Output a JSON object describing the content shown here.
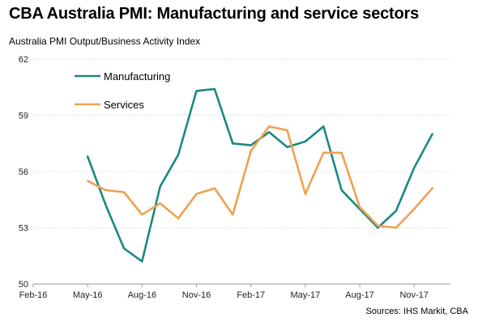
{
  "title": "CBA Australia PMI: Manufacturing and service sectors",
  "subtitle": "Australia PMI Output/Business Activity Index",
  "source": "Sources: IHS Markit, CBA",
  "colors": {
    "manufacturing": "#1a8a80",
    "services": "#f0a050",
    "grid": "#d0d0d0",
    "axis": "#999999"
  },
  "chart_data": {
    "type": "line",
    "title": "CBA Australia PMI: Manufacturing and service sectors",
    "ylabel": "Australia PMI Output/Business Activity Index",
    "xlabel": "",
    "ylim": [
      50,
      62
    ],
    "yticks": [
      50,
      53,
      56,
      59,
      62
    ],
    "ytick_labels": [
      "50",
      "53",
      "56",
      "59",
      "62"
    ],
    "xlim": [
      "2016-02",
      "2018-01"
    ],
    "xticks": [
      "2016-02",
      "2016-05",
      "2016-08",
      "2016-11",
      "2017-02",
      "2017-05",
      "2017-08",
      "2017-11"
    ],
    "xtick_labels": [
      "Feb-16",
      "May-16",
      "Aug-16",
      "Nov-16",
      "Feb-17",
      "May-17",
      "Aug-17",
      "Nov-17"
    ],
    "grid": "horizontal",
    "legend": "top-left",
    "x": [
      "2016-05",
      "2016-06",
      "2016-07",
      "2016-08",
      "2016-09",
      "2016-10",
      "2016-11",
      "2016-12",
      "2017-01",
      "2017-02",
      "2017-03",
      "2017-04",
      "2017-05",
      "2017-06",
      "2017-07",
      "2017-08",
      "2017-09",
      "2017-10",
      "2017-11",
      "2017-12"
    ],
    "series": [
      {
        "name": "Manufacturing",
        "values": [
          56.8,
          54.2,
          51.9,
          51.2,
          55.2,
          56.9,
          60.3,
          60.4,
          57.5,
          57.4,
          58.1,
          57.3,
          57.6,
          58.4,
          55.0,
          54.0,
          53.0,
          53.9,
          56.2,
          58.0
        ]
      },
      {
        "name": "Services",
        "values": [
          55.5,
          55.0,
          54.9,
          53.7,
          54.3,
          53.5,
          54.8,
          55.1,
          53.7,
          57.1,
          58.4,
          58.2,
          54.8,
          57.0,
          57.0,
          54.1,
          53.1,
          53.0,
          54.0,
          55.1
        ]
      }
    ]
  }
}
